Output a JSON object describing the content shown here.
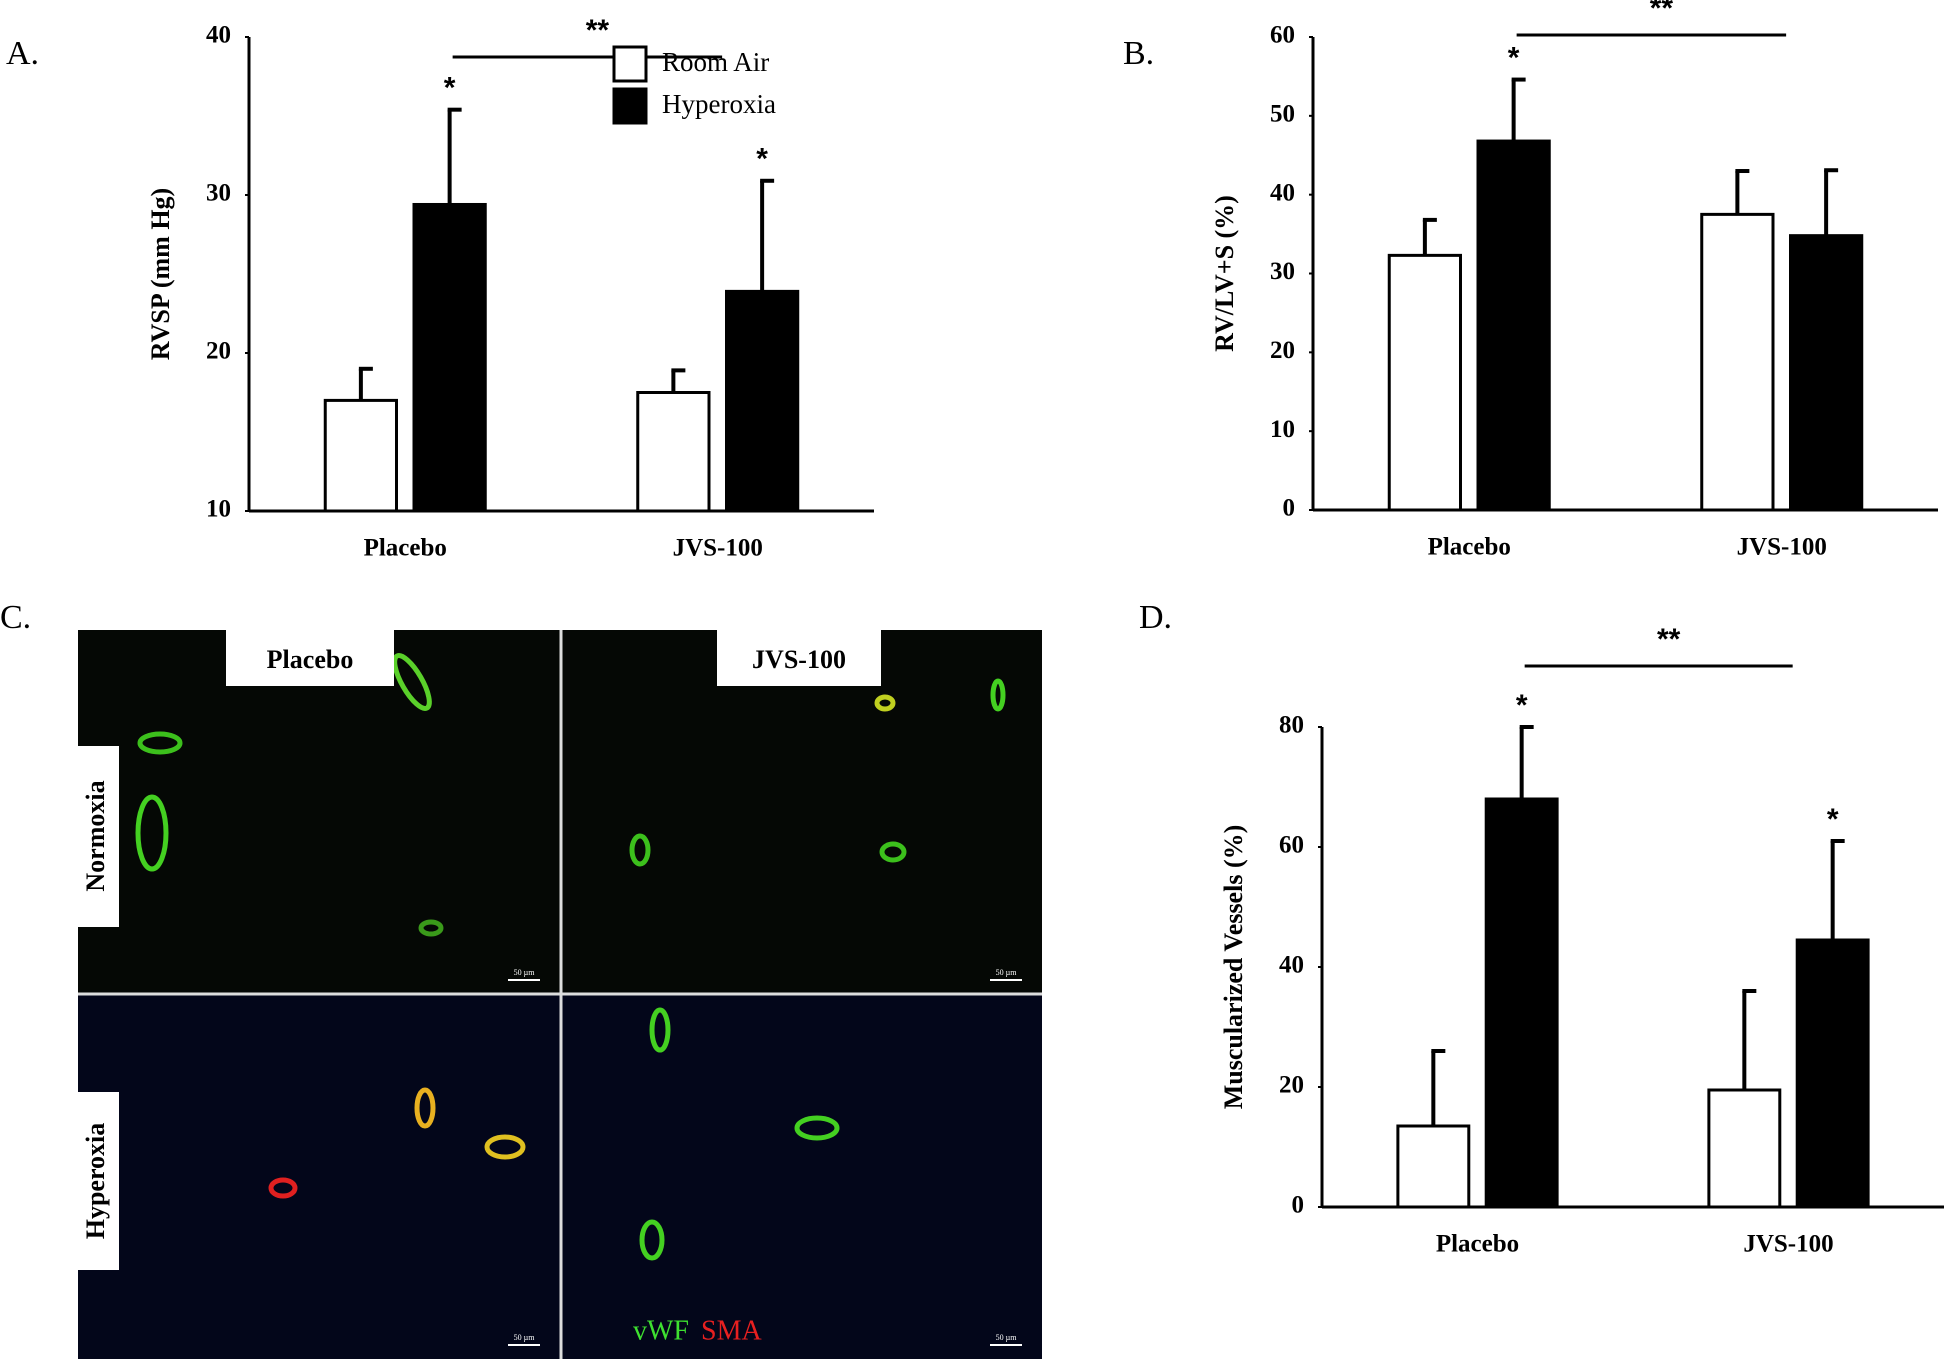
{
  "chart_data": [
    {
      "type": "bar",
      "label": "A.",
      "ylabel": "RVSP (mm Hg)",
      "categories": [
        "Placebo",
        "JVS-100"
      ],
      "series": [
        {
          "name": "Room Air",
          "color": "#ffffff",
          "values": [
            17,
            17.5
          ],
          "errors": [
            2,
            1.4
          ],
          "markers": [
            null,
            null
          ]
        },
        {
          "name": "Hyperoxia",
          "color": "#000000",
          "values": [
            29.4,
            23.9
          ],
          "errors": [
            6,
            7
          ],
          "markers": [
            "*",
            "*"
          ]
        }
      ],
      "comparison": "**",
      "ylim": [
        10,
        40
      ],
      "yticks": [
        10,
        20,
        30,
        40
      ],
      "legend": "upper right"
    },
    {
      "type": "bar",
      "label": "B.",
      "ylabel": "RV/LV+S (%)",
      "categories": [
        "Placebo",
        "JVS-100"
      ],
      "series": [
        {
          "name": "Room Air",
          "color": "#ffffff",
          "values": [
            32.3,
            37.5
          ],
          "errors": [
            4.5,
            5.5
          ],
          "markers": [
            null,
            null
          ]
        },
        {
          "name": "Hyperoxia",
          "color": "#000000",
          "values": [
            46.8,
            34.8
          ],
          "errors": [
            7.8,
            8.3
          ],
          "markers": [
            "*",
            null
          ]
        }
      ],
      "comparison": "**",
      "ylim": [
        0,
        60
      ],
      "yticks": [
        0,
        10,
        20,
        30,
        40,
        50,
        60
      ],
      "legend": null
    },
    {
      "type": "bar",
      "label": "D.",
      "ylabel": "Muscularized Vessels (%)",
      "categories": [
        "Placebo",
        "JVS-100"
      ],
      "series": [
        {
          "name": "Room Air",
          "color": "#ffffff",
          "values": [
            13.5,
            19.5
          ],
          "errors": [
            12.5,
            16.5
          ],
          "markers": [
            null,
            null
          ]
        },
        {
          "name": "Hyperoxia",
          "color": "#000000",
          "values": [
            68,
            44.5
          ],
          "errors": [
            12,
            16.5
          ],
          "markers": [
            "*",
            "*"
          ]
        }
      ],
      "comparison": "**",
      "ylim": [
        0,
        80
      ],
      "yticks": [
        0,
        20,
        40,
        60,
        80
      ],
      "legend": null
    }
  ],
  "micrograph": {
    "label": "C.",
    "columns": [
      "Placebo",
      "JVS-100"
    ],
    "rows": [
      "Normoxia",
      "Hyperoxia"
    ],
    "stains": [
      "vWF",
      "SMA"
    ],
    "scale_bar": "50 µm"
  }
}
